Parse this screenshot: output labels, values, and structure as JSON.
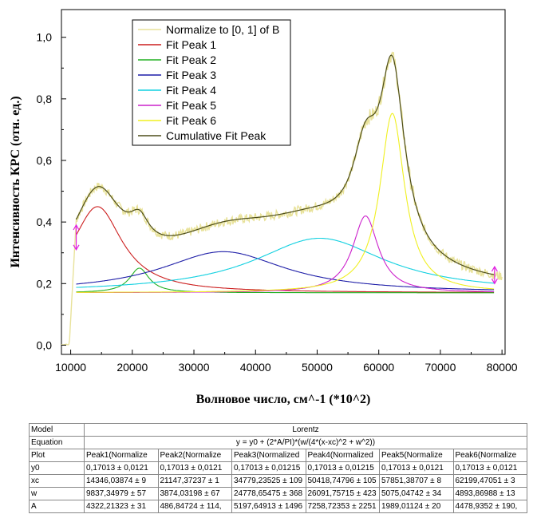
{
  "chart_data": {
    "type": "line",
    "title": "",
    "xlabel": "Волновое число, см^-1 (*10^2)",
    "ylabel": "Интенсивность КРС (отн. ед.)",
    "xlim": [
      8500,
      80500
    ],
    "ylim": [
      -0.03,
      1.09
    ],
    "xticks": [
      10000,
      20000,
      30000,
      40000,
      50000,
      60000,
      70000,
      80000
    ],
    "xtick_labels": [
      "10000",
      "20000",
      "30000",
      "40000",
      "50000",
      "60000",
      "70000",
      "80000"
    ],
    "yticks": [
      0.0,
      0.2,
      0.4,
      0.6,
      0.8,
      1.0
    ],
    "ytick_labels": [
      "0,0",
      "0,2",
      "0,4",
      "0,6",
      "0,8",
      "1,0"
    ],
    "grid": false,
    "legend_position": "top-center",
    "baseline": 0.17013,
    "series": [
      {
        "name": "Normalize to [0, 1] of B",
        "color": "#e8e29a",
        "kind": "measured"
      },
      {
        "name": "Fit Peak 1",
        "color": "#cc1f1f",
        "kind": "peak",
        "xc": 14346.03874,
        "w": 9837.34979,
        "A": 4322.21323
      },
      {
        "name": "Fit Peak 2",
        "color": "#22b022",
        "kind": "peak",
        "xc": 21147.37237,
        "w": 3874.03198,
        "A": 486.84724
      },
      {
        "name": "Fit Peak 3",
        "color": "#1f1fa8",
        "kind": "peak",
        "xc": 34779.23525,
        "w": 24778.65475,
        "A": 5197.64913
      },
      {
        "name": "Fit Peak 4",
        "color": "#10d0e0",
        "kind": "peak",
        "xc": 50418.74796,
        "w": 26091.75715,
        "A": 7258.72353
      },
      {
        "name": "Fit Peak 5",
        "color": "#cc22cc",
        "kind": "peak",
        "xc": 57851.38707,
        "w": 5075.04742,
        "A": 1989.01124
      },
      {
        "name": "Fit Peak 6",
        "color": "#f0f020",
        "kind": "peak",
        "xc": 62199.47051,
        "w": 4893.86988,
        "A": 4478.9352
      },
      {
        "name": "Cumulative Fit Peak",
        "color": "#4d4d1a",
        "kind": "cumulative"
      }
    ],
    "fit_range_markers": [
      {
        "x": 10900,
        "y_low": 0.31,
        "y_high": 0.39
      },
      {
        "x": 78800,
        "y_low": 0.2,
        "y_high": 0.255
      }
    ],
    "marker_color": "#e020e0"
  },
  "table": {
    "rows": [
      {
        "head": "Model",
        "span": "Lorentz"
      },
      {
        "head": "Equation",
        "span": "y = y0 + (2*A/PI)*(w/(4*(x-xc)^2 + w^2))"
      },
      {
        "head": "Plot",
        "cells": [
          "Peak1(Normalize",
          "Peak2(Normalize",
          "Peak3(Normalized",
          "Peak4(Normalized",
          "Peak5(Normalize",
          "Peak6(Normalize"
        ]
      },
      {
        "head": "y0",
        "cells": [
          "0,17013 ± 0,0121",
          "0,17013 ± 0,0121",
          "0,17013 ± 0,01215",
          "0,17013 ± 0,01215",
          "0,17013 ± 0,0121",
          "0,17013 ± 0,0121"
        ]
      },
      {
        "head": "xc",
        "cells": [
          "14346,03874 ± 9",
          "21147,37237 ± 1",
          "34779,23525 ± 109",
          "50418,74796 ± 105",
          "57851,38707 ± 8",
          "62199,47051 ± 3"
        ]
      },
      {
        "head": "w",
        "cells": [
          "9837,34979 ± 57",
          "3874,03198 ± 67",
          "24778,65475 ± 368",
          "26091,75715 ± 423",
          "5075,04742 ± 34",
          "4893,86988 ± 13"
        ]
      },
      {
        "head": "A",
        "cells": [
          "4322,21323 ± 31",
          "486,84724 ± 114,",
          "5197,64913 ± 1496",
          "7258,72353 ± 2251",
          "1989,01124 ± 20",
          "4478,9352 ± 190,"
        ]
      }
    ]
  }
}
